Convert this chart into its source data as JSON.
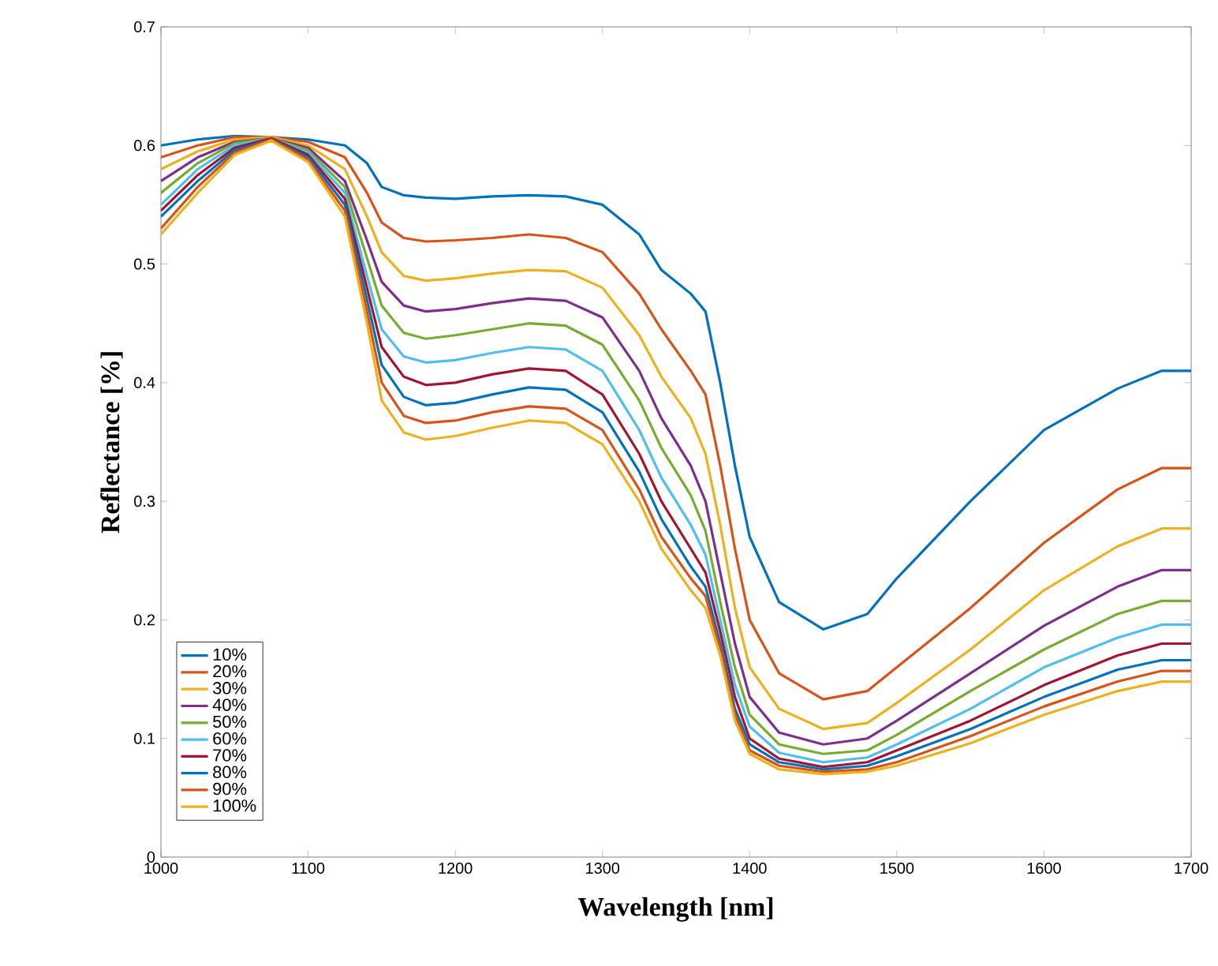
{
  "chart_data": {
    "type": "line",
    "xlabel": "Wavelength [nm]",
    "ylabel": "Reflectance [%]",
    "x": [
      1000,
      1025,
      1050,
      1075,
      1100,
      1125,
      1140,
      1150,
      1165,
      1180,
      1200,
      1225,
      1250,
      1275,
      1300,
      1325,
      1340,
      1360,
      1370,
      1380,
      1390,
      1400,
      1420,
      1450,
      1480,
      1500,
      1550,
      1600,
      1650,
      1680,
      1700
    ],
    "xlim": [
      1000,
      1700
    ],
    "ylim": [
      0,
      0.7
    ],
    "xticks": [
      1000,
      1100,
      1200,
      1300,
      1400,
      1500,
      1600,
      1700
    ],
    "yticks": [
      0,
      0.1,
      0.2,
      0.3,
      0.4,
      0.5,
      0.6,
      0.7
    ],
    "grid": false,
    "legend": "bottom left",
    "marker": "none",
    "line_style": "solid",
    "series": [
      {
        "name": "10%",
        "color": "#0072bd",
        "values": [
          0.6,
          0.605,
          0.608,
          0.607,
          0.605,
          0.6,
          0.585,
          0.565,
          0.558,
          0.556,
          0.555,
          0.557,
          0.558,
          0.557,
          0.55,
          0.525,
          0.495,
          0.475,
          0.46,
          0.4,
          0.33,
          0.27,
          0.215,
          0.192,
          0.205,
          0.235,
          0.3,
          0.36,
          0.395,
          0.41,
          0.41
        ]
      },
      {
        "name": "20%",
        "color": "#d95319",
        "values": [
          0.59,
          0.6,
          0.607,
          0.607,
          0.603,
          0.59,
          0.56,
          0.535,
          0.522,
          0.519,
          0.52,
          0.522,
          0.525,
          0.522,
          0.51,
          0.475,
          0.445,
          0.41,
          0.39,
          0.33,
          0.26,
          0.2,
          0.155,
          0.133,
          0.14,
          0.16,
          0.21,
          0.265,
          0.31,
          0.328,
          0.328
        ]
      },
      {
        "name": "30%",
        "color": "#edb120",
        "values": [
          0.58,
          0.595,
          0.605,
          0.607,
          0.6,
          0.58,
          0.54,
          0.51,
          0.49,
          0.486,
          0.488,
          0.492,
          0.495,
          0.494,
          0.48,
          0.44,
          0.405,
          0.37,
          0.34,
          0.28,
          0.21,
          0.16,
          0.125,
          0.108,
          0.113,
          0.13,
          0.175,
          0.225,
          0.262,
          0.277,
          0.277
        ]
      },
      {
        "name": "40%",
        "color": "#7e2f8e",
        "values": [
          0.57,
          0.59,
          0.603,
          0.606,
          0.598,
          0.57,
          0.52,
          0.485,
          0.465,
          0.46,
          0.462,
          0.467,
          0.471,
          0.469,
          0.455,
          0.41,
          0.37,
          0.33,
          0.3,
          0.24,
          0.18,
          0.135,
          0.105,
          0.095,
          0.1,
          0.115,
          0.155,
          0.195,
          0.228,
          0.242,
          0.242
        ]
      },
      {
        "name": "50%",
        "color": "#77ac30",
        "values": [
          0.56,
          0.585,
          0.602,
          0.606,
          0.596,
          0.565,
          0.505,
          0.465,
          0.442,
          0.437,
          0.44,
          0.445,
          0.45,
          0.448,
          0.432,
          0.385,
          0.345,
          0.305,
          0.275,
          0.215,
          0.16,
          0.12,
          0.095,
          0.087,
          0.09,
          0.103,
          0.14,
          0.175,
          0.205,
          0.216,
          0.216
        ]
      },
      {
        "name": "60%",
        "color": "#4dbeee",
        "values": [
          0.55,
          0.58,
          0.6,
          0.606,
          0.594,
          0.56,
          0.49,
          0.445,
          0.422,
          0.417,
          0.419,
          0.425,
          0.43,
          0.428,
          0.41,
          0.36,
          0.32,
          0.28,
          0.255,
          0.2,
          0.145,
          0.11,
          0.088,
          0.08,
          0.084,
          0.095,
          0.125,
          0.16,
          0.185,
          0.196,
          0.196
        ]
      },
      {
        "name": "70%",
        "color": "#a2142f",
        "values": [
          0.545,
          0.575,
          0.598,
          0.606,
          0.592,
          0.555,
          0.48,
          0.43,
          0.405,
          0.398,
          0.4,
          0.407,
          0.412,
          0.41,
          0.39,
          0.34,
          0.3,
          0.26,
          0.24,
          0.19,
          0.135,
          0.1,
          0.083,
          0.076,
          0.08,
          0.09,
          0.115,
          0.145,
          0.17,
          0.18,
          0.18
        ]
      },
      {
        "name": "80%",
        "color": "#0072bd",
        "values": [
          0.54,
          0.57,
          0.596,
          0.605,
          0.59,
          0.55,
          0.47,
          0.415,
          0.388,
          0.381,
          0.383,
          0.39,
          0.396,
          0.394,
          0.375,
          0.325,
          0.285,
          0.245,
          0.228,
          0.18,
          0.125,
          0.095,
          0.08,
          0.074,
          0.077,
          0.085,
          0.108,
          0.135,
          0.158,
          0.166,
          0.166
        ]
      },
      {
        "name": "90%",
        "color": "#d95319",
        "values": [
          0.53,
          0.565,
          0.594,
          0.605,
          0.588,
          0.545,
          0.46,
          0.4,
          0.372,
          0.366,
          0.368,
          0.375,
          0.38,
          0.378,
          0.36,
          0.31,
          0.27,
          0.235,
          0.22,
          0.175,
          0.12,
          0.09,
          0.077,
          0.072,
          0.074,
          0.08,
          0.102,
          0.127,
          0.148,
          0.157,
          0.157
        ]
      },
      {
        "name": "100%",
        "color": "#edb120",
        "values": [
          0.525,
          0.56,
          0.592,
          0.604,
          0.586,
          0.54,
          0.45,
          0.385,
          0.358,
          0.352,
          0.355,
          0.362,
          0.368,
          0.366,
          0.348,
          0.3,
          0.26,
          0.225,
          0.21,
          0.17,
          0.115,
          0.087,
          0.074,
          0.07,
          0.072,
          0.077,
          0.096,
          0.12,
          0.14,
          0.148,
          0.148
        ]
      }
    ]
  }
}
